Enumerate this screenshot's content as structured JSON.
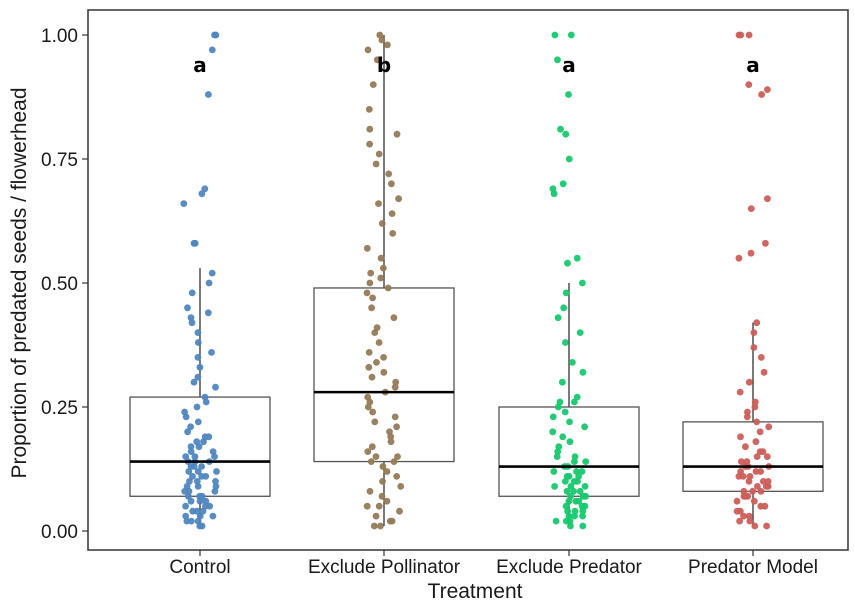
{
  "chart_data": {
    "type": "scatter",
    "subtype": "boxplot-with-jittered-points",
    "title": "",
    "xlabel": "Treatment",
    "ylabel": "Proportion of predated seeds / flowerhead",
    "ylim": [
      0,
      1
    ],
    "y_ticks": [
      "0.00",
      "0.25",
      "0.50",
      "0.75",
      "1.00"
    ],
    "y_tick_values": [
      0,
      0.25,
      0.5,
      0.75,
      1.0
    ],
    "grid": false,
    "legend": "none",
    "categories": [
      "Control",
      "Exclude Pollinator",
      "Exclude Predator",
      "Predator Model"
    ],
    "series": [
      {
        "category": "Control",
        "color": "#4f86c0",
        "box": {
          "whisker_low": 0.01,
          "q1": 0.07,
          "median": 0.14,
          "q3": 0.27,
          "whisker_high": 0.53
        },
        "significance": "a",
        "outliers": [
          1.0,
          1.0,
          0.97,
          0.88,
          0.69,
          0.68,
          0.66,
          0.58,
          0.58
        ],
        "points": [
          0.01,
          0.01,
          0.02,
          0.02,
          0.02,
          0.03,
          0.03,
          0.03,
          0.04,
          0.04,
          0.04,
          0.05,
          0.05,
          0.05,
          0.06,
          0.06,
          0.06,
          0.07,
          0.07,
          0.07,
          0.08,
          0.08,
          0.08,
          0.09,
          0.09,
          0.09,
          0.1,
          0.1,
          0.1,
          0.11,
          0.11,
          0.11,
          0.12,
          0.12,
          0.12,
          0.13,
          0.13,
          0.13,
          0.14,
          0.14,
          0.14,
          0.15,
          0.15,
          0.15,
          0.16,
          0.16,
          0.17,
          0.17,
          0.18,
          0.18,
          0.19,
          0.19,
          0.2,
          0.21,
          0.22,
          0.23,
          0.24,
          0.25,
          0.26,
          0.27,
          0.29,
          0.3,
          0.31,
          0.33,
          0.35,
          0.36,
          0.38,
          0.4,
          0.42,
          0.43,
          0.44,
          0.45,
          0.48,
          0.5,
          0.52
        ]
      },
      {
        "category": "Exclude Pollinator",
        "color": "#957a57",
        "box": {
          "whisker_low": 0.01,
          "q1": 0.14,
          "median": 0.28,
          "q3": 0.49,
          "whisker_high": 1.0
        },
        "significance": "b",
        "outliers": [],
        "points": [
          0.01,
          0.01,
          0.02,
          0.02,
          0.03,
          0.04,
          0.05,
          0.05,
          0.06,
          0.07,
          0.08,
          0.09,
          0.1,
          0.11,
          0.12,
          0.13,
          0.14,
          0.14,
          0.15,
          0.15,
          0.16,
          0.17,
          0.18,
          0.19,
          0.2,
          0.21,
          0.22,
          0.23,
          0.24,
          0.25,
          0.26,
          0.27,
          0.28,
          0.29,
          0.3,
          0.31,
          0.32,
          0.33,
          0.34,
          0.35,
          0.36,
          0.38,
          0.4,
          0.41,
          0.43,
          0.45,
          0.47,
          0.48,
          0.49,
          0.5,
          0.51,
          0.52,
          0.53,
          0.55,
          0.57,
          0.6,
          0.62,
          0.64,
          0.66,
          0.67,
          0.7,
          0.72,
          0.74,
          0.76,
          0.78,
          0.8,
          0.81,
          0.85,
          0.9,
          0.95,
          0.97,
          0.98,
          0.99,
          1.0
        ]
      },
      {
        "category": "Exclude Predator",
        "color": "#17c86e",
        "box": {
          "whisker_low": 0.01,
          "q1": 0.07,
          "median": 0.13,
          "q3": 0.25,
          "whisker_high": 0.5
        },
        "significance": "a",
        "outliers": [
          1.0,
          1.0,
          0.95,
          0.88,
          0.81,
          0.8,
          0.75,
          0.7,
          0.69,
          0.68,
          0.55,
          0.54
        ],
        "points": [
          0.01,
          0.01,
          0.02,
          0.02,
          0.02,
          0.03,
          0.03,
          0.03,
          0.04,
          0.04,
          0.04,
          0.05,
          0.05,
          0.05,
          0.06,
          0.06,
          0.06,
          0.07,
          0.07,
          0.07,
          0.08,
          0.08,
          0.08,
          0.09,
          0.09,
          0.09,
          0.1,
          0.1,
          0.1,
          0.11,
          0.11,
          0.11,
          0.12,
          0.12,
          0.12,
          0.13,
          0.13,
          0.14,
          0.14,
          0.15,
          0.15,
          0.16,
          0.17,
          0.18,
          0.19,
          0.2,
          0.21,
          0.22,
          0.23,
          0.24,
          0.25,
          0.26,
          0.26,
          0.27,
          0.3,
          0.32,
          0.34,
          0.38,
          0.4,
          0.43,
          0.45,
          0.48,
          0.5
        ]
      },
      {
        "category": "Predator Model",
        "color": "#cc5e58",
        "box": {
          "whisker_low": 0.01,
          "q1": 0.08,
          "median": 0.13,
          "q3": 0.22,
          "whisker_high": 0.42
        },
        "significance": "a",
        "outliers": [
          1.0,
          1.0,
          1.0,
          0.9,
          0.89,
          0.88,
          0.67,
          0.65,
          0.58,
          0.56,
          0.55
        ],
        "points": [
          0.01,
          0.01,
          0.02,
          0.02,
          0.03,
          0.03,
          0.04,
          0.04,
          0.05,
          0.05,
          0.06,
          0.06,
          0.07,
          0.07,
          0.07,
          0.08,
          0.08,
          0.08,
          0.09,
          0.09,
          0.09,
          0.1,
          0.1,
          0.1,
          0.11,
          0.11,
          0.11,
          0.12,
          0.12,
          0.12,
          0.13,
          0.13,
          0.13,
          0.14,
          0.14,
          0.15,
          0.15,
          0.16,
          0.16,
          0.17,
          0.18,
          0.19,
          0.2,
          0.21,
          0.22,
          0.23,
          0.24,
          0.25,
          0.26,
          0.28,
          0.3,
          0.32,
          0.35,
          0.37,
          0.4,
          0.42
        ]
      }
    ]
  }
}
